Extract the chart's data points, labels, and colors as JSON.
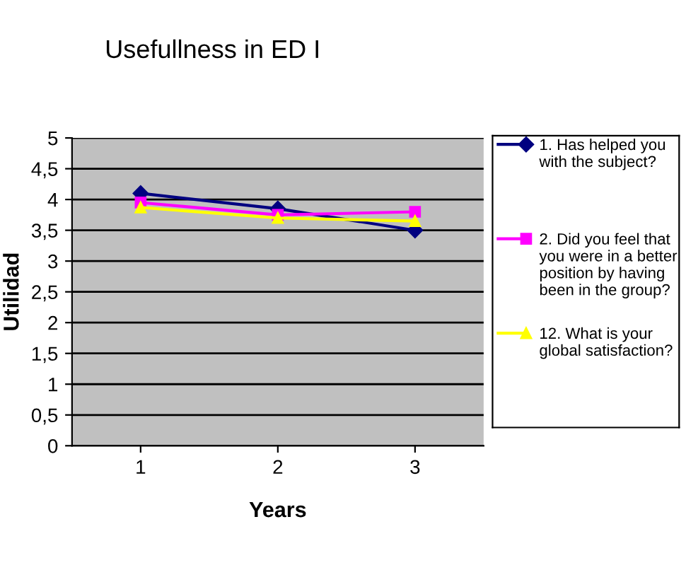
{
  "chart_data": {
    "type": "line",
    "title": "Usefullness in ED I",
    "xlabel": "Years",
    "ylabel": "Utilidad",
    "categories": [
      "1",
      "2",
      "3"
    ],
    "series": [
      {
        "name": "1. Has helped you with the subject?",
        "color": "#000080",
        "marker": "diamond",
        "values": [
          4.1,
          3.85,
          3.5
        ]
      },
      {
        "name": "2. Did you feel that you were in a better position by having been in the group?",
        "color": "#ff00ff",
        "marker": "square",
        "values": [
          3.95,
          3.75,
          3.8
        ]
      },
      {
        "name": "12. What is your global satisfaction?",
        "color": "#ffff00",
        "marker": "triangle",
        "values": [
          3.87,
          3.7,
          3.65
        ]
      }
    ],
    "ylim": [
      0,
      5
    ],
    "yticks": [
      {
        "value": 0,
        "label": "0"
      },
      {
        "value": 0.5,
        "label": "0,5"
      },
      {
        "value": 1,
        "label": "1"
      },
      {
        "value": 1.5,
        "label": "1,5"
      },
      {
        "value": 2,
        "label": "2"
      },
      {
        "value": 2.5,
        "label": "2,5"
      },
      {
        "value": 3,
        "label": "3"
      },
      {
        "value": 3.5,
        "label": "3,5"
      },
      {
        "value": 4,
        "label": "4"
      },
      {
        "value": 4.5,
        "label": "4,5"
      },
      {
        "value": 5,
        "label": "5"
      }
    ],
    "grid": "y",
    "legend": "right"
  }
}
